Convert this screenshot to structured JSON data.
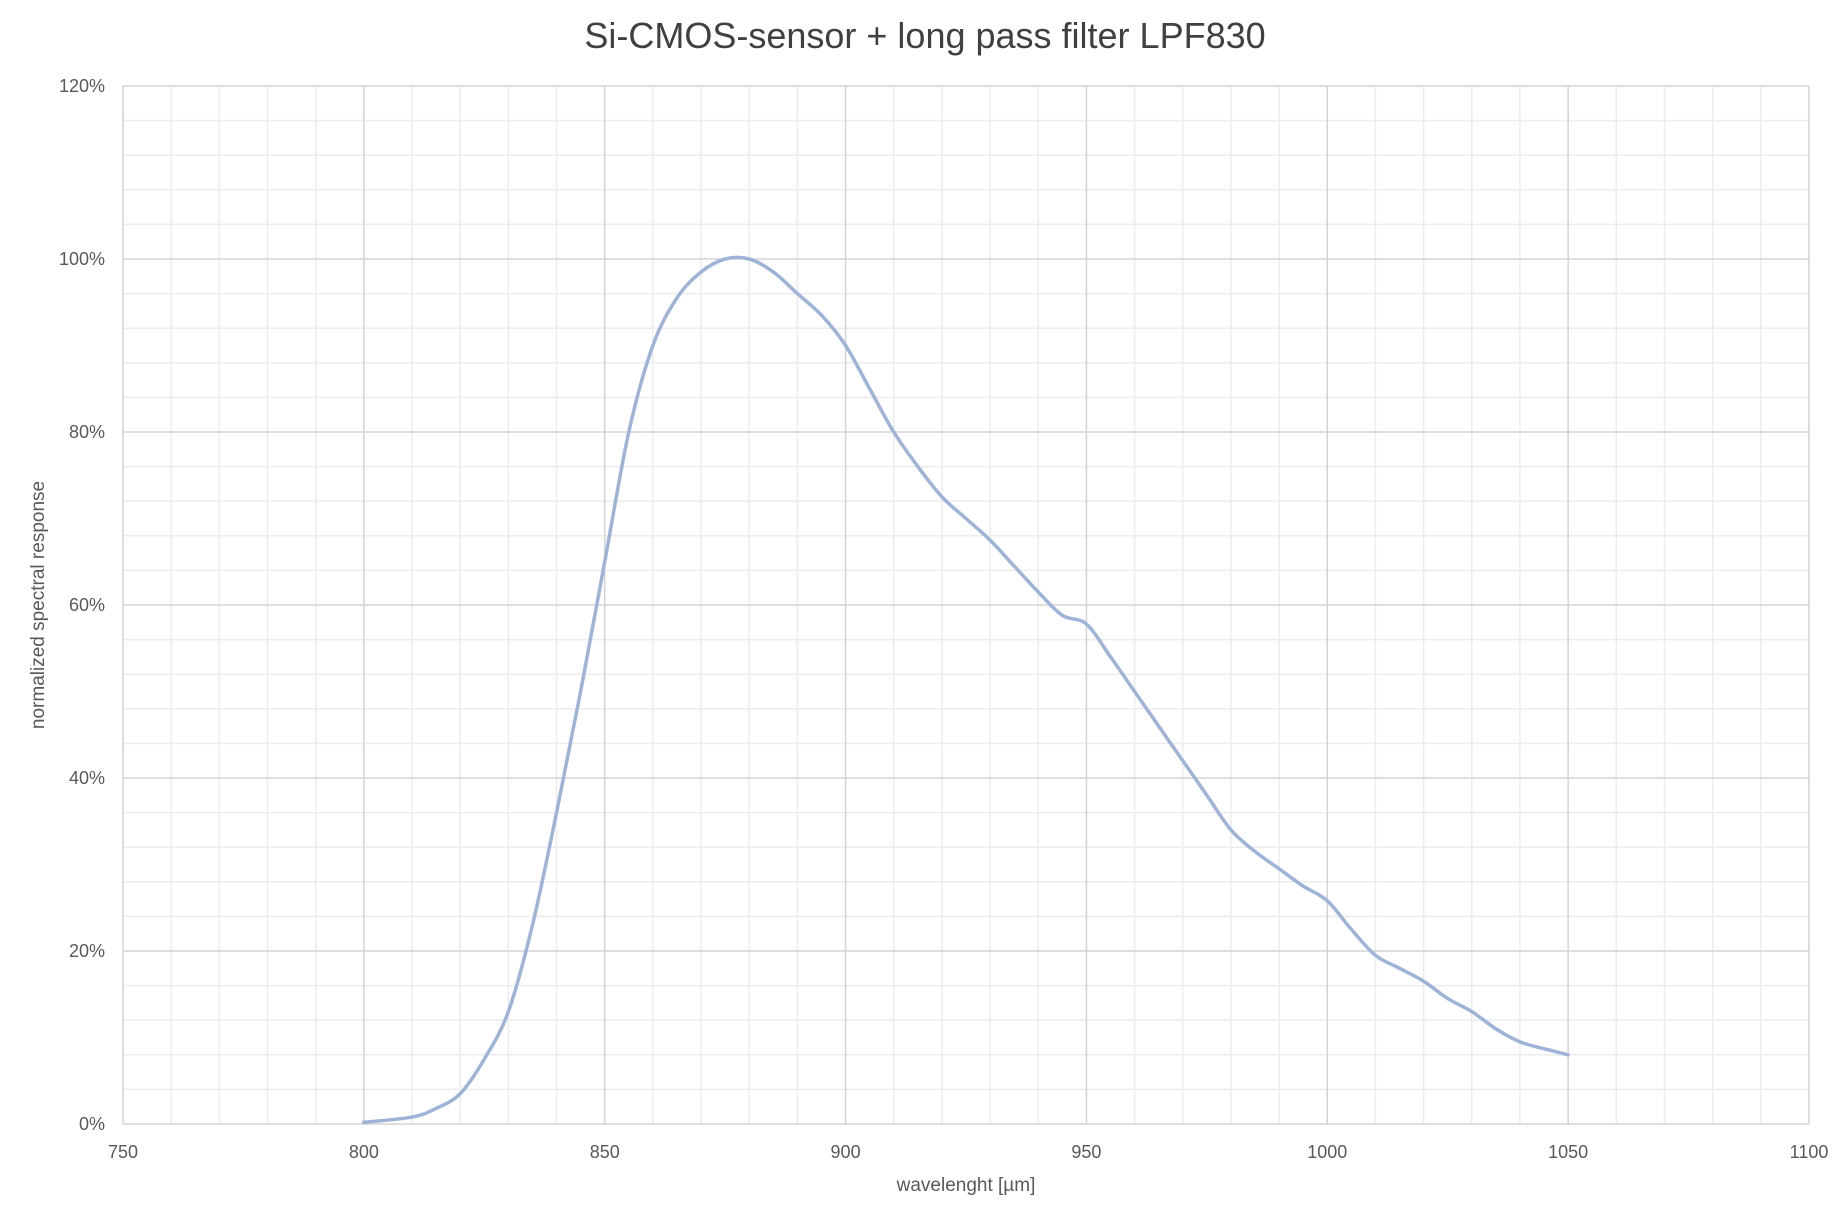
{
  "chart_data": {
    "type": "line",
    "title": "Si-CMOS-sensor + long pass filter LPF830",
    "xlabel": "wavelenght [µm]",
    "ylabel": "normalized spectral response",
    "xlim": [
      750,
      1100
    ],
    "ylim": [
      0,
      120
    ],
    "x_ticks": [
      "750",
      "800",
      "850",
      "900",
      "950",
      "1000",
      "1050",
      "1100"
    ],
    "y_ticks": [
      "0%",
      "20%",
      "40%",
      "60%",
      "80%",
      "100%",
      "120%"
    ],
    "grid": {
      "major": true,
      "minor": true
    },
    "line_color": "#9fb3d8",
    "series": [
      {
        "x": [
          800,
          810,
          815,
          820,
          825,
          830,
          835,
          840,
          845,
          850,
          855,
          860,
          865,
          870,
          875,
          880,
          885,
          890,
          895,
          900,
          905,
          910,
          915,
          920,
          925,
          930,
          935,
          940,
          945,
          950,
          955,
          960,
          965,
          970,
          975,
          980,
          985,
          990,
          995,
          1000,
          1005,
          1010,
          1015,
          1020,
          1025,
          1030,
          1035,
          1040,
          1045,
          1050
        ],
        "y": [
          0.2,
          0.8,
          1.8,
          3.5,
          7.5,
          13,
          23,
          36,
          50,
          65,
          80,
          90,
          95.5,
          98.5,
          100,
          100,
          98.5,
          96,
          93.5,
          90,
          85,
          80,
          76,
          72.5,
          70,
          67.5,
          64.5,
          61.5,
          58.8,
          57.8,
          54,
          50,
          46,
          42,
          38,
          34,
          31.5,
          29.5,
          27.5,
          25.8,
          22.5,
          19.5,
          18,
          16.5,
          14.5,
          13,
          11,
          9.5,
          8.7,
          8
        ]
      }
    ]
  }
}
